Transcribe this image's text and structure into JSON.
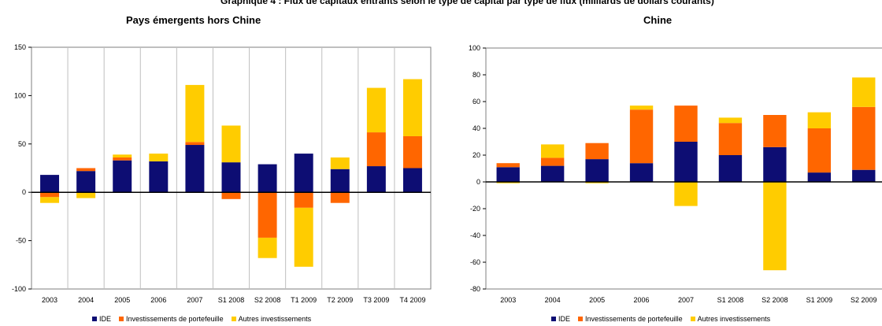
{
  "supertitle": "Graphique 4 : Flux de capitaux entrants selon le type de capital par type de flux (milliards de dollars courants)",
  "colors": {
    "ide": "#0d0d73",
    "portefeuille": "#ff6600",
    "autres": "#ffcc00"
  },
  "chart_data": [
    {
      "type": "bar",
      "stacked": true,
      "title": "Pays émergents hors Chine",
      "categories": [
        "2003",
        "2004",
        "2005",
        "2006",
        "2007",
        "S1 2008",
        "S2 2008",
        "T1 2009",
        "T2 2009",
        "T3 2009",
        "T4 2009"
      ],
      "ylim": [
        -100,
        150
      ],
      "yticks": [
        -100,
        -50,
        0,
        50,
        100,
        150
      ],
      "grid": true,
      "legend_position": "bottom",
      "series": [
        {
          "name": "IDE",
          "values": [
            18,
            22,
            33,
            32,
            49,
            31,
            29,
            40,
            24,
            27,
            25
          ]
        },
        {
          "name": "Investissements de portefeuille",
          "values": [
            -5,
            3,
            3,
            0,
            3,
            -7,
            -47,
            -16,
            -11,
            35,
            33
          ]
        },
        {
          "name": "Autres investissements",
          "values": [
            -6,
            -6,
            3,
            8,
            59,
            38,
            -21,
            -61,
            12,
            46,
            59
          ]
        }
      ]
    },
    {
      "type": "bar",
      "stacked": true,
      "title": "Chine",
      "categories": [
        "2003",
        "2004",
        "2005",
        "2006",
        "2007",
        "S1 2008",
        "S2 2008",
        "S1 2009",
        "S2 2009"
      ],
      "ylim": [
        -80,
        100
      ],
      "yticks": [
        -80,
        -60,
        -40,
        -20,
        0,
        20,
        40,
        60,
        80,
        100
      ],
      "grid": false,
      "legend_position": "bottom",
      "series": [
        {
          "name": "IDE",
          "values": [
            11,
            12,
            17,
            14,
            30,
            20,
            26,
            7,
            9
          ]
        },
        {
          "name": "Investissements de portefeuille",
          "values": [
            3,
            6,
            12,
            40,
            27,
            24,
            24,
            33,
            47
          ]
        },
        {
          "name": "Autres investissements",
          "values": [
            -1,
            10,
            -1,
            3,
            -18,
            4,
            -66,
            12,
            22
          ]
        }
      ]
    }
  ]
}
